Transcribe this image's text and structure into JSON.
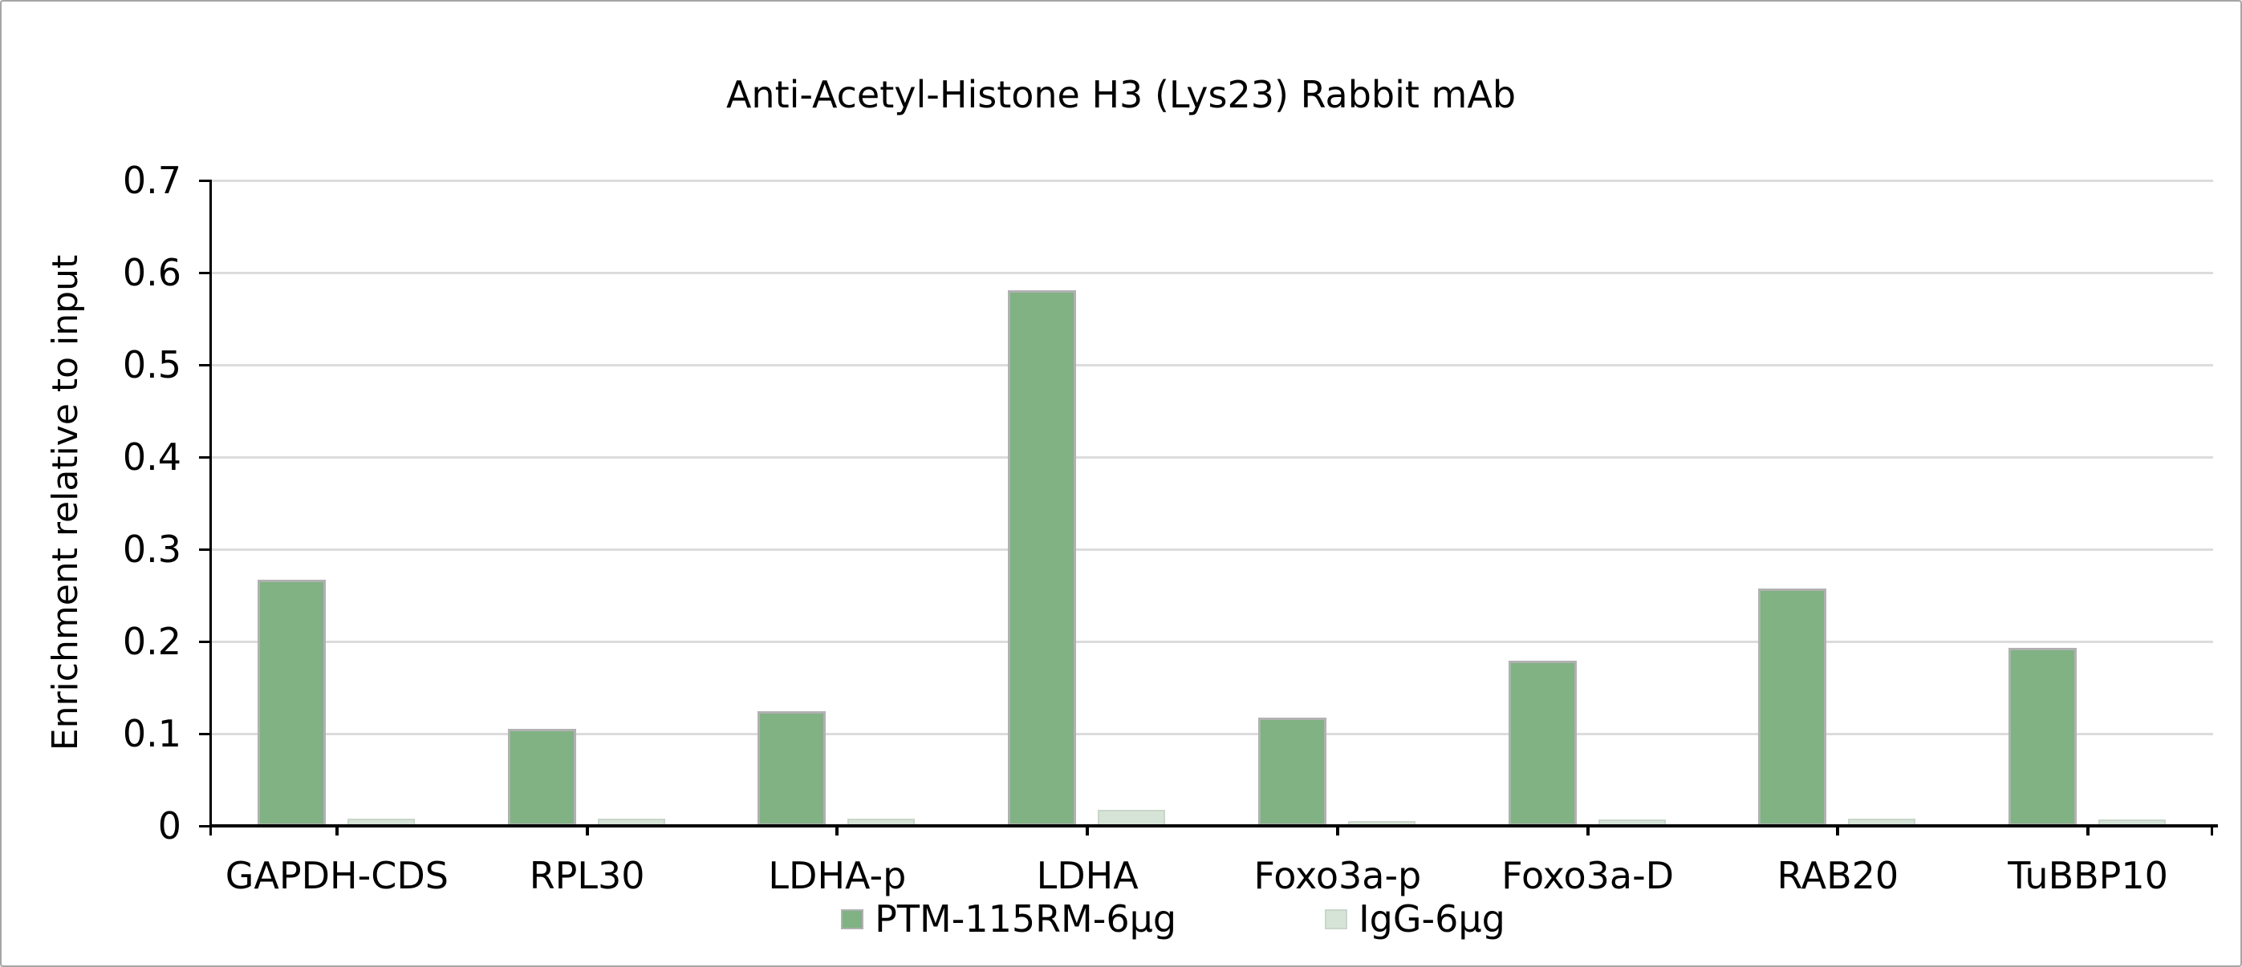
{
  "window": {
    "background": "#ffffff",
    "frame_border_color": "#a6a6a6"
  },
  "chart_data": {
    "type": "bar",
    "title": "Anti-Acetyl-Histone H3 (Lys23) Rabbit mAb",
    "xlabel": "",
    "ylabel": "Enrichment relative to input",
    "ylim": [
      0,
      0.7
    ],
    "ytick_step": 0.1,
    "ytick_labels": [
      "0",
      "0.1",
      "0.2",
      "0.3",
      "0.4",
      "0.5",
      "0.6",
      "0.7"
    ],
    "grid": true,
    "gridline_color": "#dcdcdc",
    "axis_color": "#000000",
    "legend_position": "bottom",
    "categories": [
      "GAPDH-CDS",
      "RPL30",
      "LDHA-p",
      "LDHA",
      "Foxo3a-p",
      "Foxo3a-D",
      "RAB20",
      "TuBBP10"
    ],
    "series": [
      {
        "name": "PTM-115RM-6μg",
        "fill_color": "#80b283",
        "border_color": "#b1b1b1",
        "values": [
          0.267,
          0.105,
          0.124,
          0.581,
          0.117,
          0.179,
          0.257,
          0.193
        ]
      },
      {
        "name": "IgG-6μg",
        "fill_color": "#d6e4d7",
        "border_color": "#c9d6ca",
        "values": [
          0.008,
          0.008,
          0.008,
          0.017,
          0.005,
          0.007,
          0.008,
          0.007
        ]
      }
    ]
  }
}
